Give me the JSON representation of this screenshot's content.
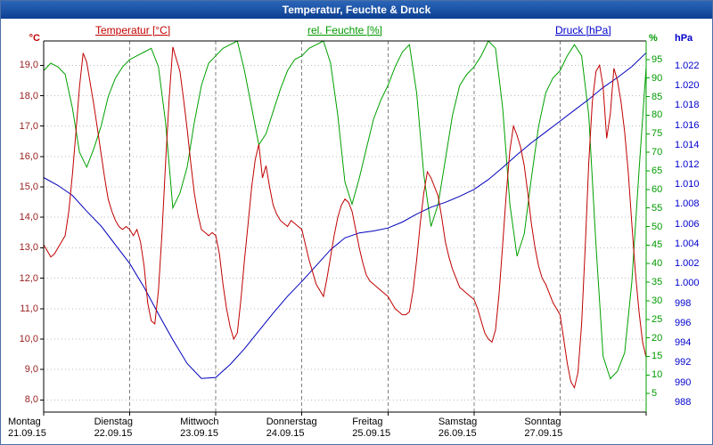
{
  "window": {
    "title": "Temperatur, Feuchte & Druck"
  },
  "colors": {
    "titlebar_start": "#2b66b8",
    "titlebar_end": "#0d3f92",
    "titlebar_text": "#ffffff",
    "plot_background": "#ffffff",
    "axis_line": "#000000",
    "grid_vertical": "#7f7f7f",
    "grid_horizontal": "#bbbbbb",
    "temperature": "#c00000",
    "temperature_labels": "#992222",
    "humidity": "#00a000",
    "humidity_labels": "#009900",
    "pressure": "#0000bb",
    "pressure_labels": "#0000cc"
  },
  "chart_data": {
    "type": "line",
    "title": "Temperatur, Feuchte & Druck",
    "grid": {
      "vertical_dashed_at_day_boundaries": true,
      "horizontal_dotted_at_temperature_ticks": true
    },
    "x_axis": {
      "unit": "hours_from_monday_00",
      "total_hours": 168,
      "days": [
        {
          "name": "Montag",
          "date": "21.09.15",
          "hour": 0
        },
        {
          "name": "Dienstag",
          "date": "22.09.15",
          "hour": 24
        },
        {
          "name": "Mittwoch",
          "date": "23.09.15",
          "hour": 48
        },
        {
          "name": "Donnerstag",
          "date": "24.09.15",
          "hour": 72
        },
        {
          "name": "Freitag",
          "date": "25.09.15",
          "hour": 96
        },
        {
          "name": "Samstag",
          "date": "26.09.15",
          "hour": 120
        },
        {
          "name": "Sonntag",
          "date": "27.09.15",
          "hour": 144
        }
      ]
    },
    "y_axes": {
      "temperature": {
        "title": "Temperatur [°C]",
        "unit": "°C",
        "side": "left",
        "min": 7.6,
        "max": 19.8,
        "ticks": [
          {
            "value": 19,
            "label": "19,0"
          },
          {
            "value": 18,
            "label": "18,0"
          },
          {
            "value": 17,
            "label": "17,0"
          },
          {
            "value": 16,
            "label": "16,0"
          },
          {
            "value": 15,
            "label": "15,0"
          },
          {
            "value": 14,
            "label": "14,0"
          },
          {
            "value": 13,
            "label": "13,0"
          },
          {
            "value": 12,
            "label": "12,0"
          },
          {
            "value": 11,
            "label": "11,0"
          },
          {
            "value": 10,
            "label": "10,0"
          },
          {
            "value": 9,
            "label": "9,0"
          },
          {
            "value": 8,
            "label": "8,0"
          }
        ]
      },
      "humidity": {
        "title": "rel. Feuchte [%]",
        "unit": "%",
        "side": "right-inner",
        "min": 0,
        "max": 100,
        "ticks": [
          {
            "value": 95,
            "label": "95"
          },
          {
            "value": 90,
            "label": "90"
          },
          {
            "value": 85,
            "label": "85"
          },
          {
            "value": 80,
            "label": "80"
          },
          {
            "value": 75,
            "label": "75"
          },
          {
            "value": 70,
            "label": "70"
          },
          {
            "value": 65,
            "label": "65"
          },
          {
            "value": 60,
            "label": "60"
          },
          {
            "value": 55,
            "label": "55"
          },
          {
            "value": 50,
            "label": "50"
          },
          {
            "value": 45,
            "label": "45"
          },
          {
            "value": 40,
            "label": "40"
          },
          {
            "value": 35,
            "label": "35"
          },
          {
            "value": 30,
            "label": "30"
          },
          {
            "value": 25,
            "label": "25"
          },
          {
            "value": 20,
            "label": "20"
          },
          {
            "value": 15,
            "label": "15"
          },
          {
            "value": 10,
            "label": "10"
          },
          {
            "value": 5,
            "label": "5"
          }
        ]
      },
      "pressure": {
        "title": "Druck [hPa]",
        "unit": "hPa",
        "side": "right-outer",
        "min": 987,
        "max": 1024.5,
        "ticks": [
          {
            "value": 1022,
            "label": "1.022"
          },
          {
            "value": 1020,
            "label": "1.020"
          },
          {
            "value": 1018,
            "label": "1.018"
          },
          {
            "value": 1016,
            "label": "1.016"
          },
          {
            "value": 1014,
            "label": "1.014"
          },
          {
            "value": 1012,
            "label": "1.012"
          },
          {
            "value": 1010,
            "label": "1.010"
          },
          {
            "value": 1008,
            "label": "1.008"
          },
          {
            "value": 1006,
            "label": "1.006"
          },
          {
            "value": 1004,
            "label": "1.004"
          },
          {
            "value": 1002,
            "label": "1.002"
          },
          {
            "value": 1000,
            "label": "1.000"
          },
          {
            "value": 998,
            "label": "998"
          },
          {
            "value": 996,
            "label": "996"
          },
          {
            "value": 994,
            "label": "994"
          },
          {
            "value": 992,
            "label": "992"
          },
          {
            "value": 990,
            "label": "990"
          },
          {
            "value": 988,
            "label": "988"
          }
        ]
      }
    },
    "series": [
      {
        "name": "Temperatur [°C]",
        "axis": "temperature",
        "color": "#c00000",
        "x_start": 0,
        "x_step": 1,
        "values": [
          13.1,
          12.9,
          12.7,
          12.8,
          13.0,
          13.2,
          13.4,
          14.2,
          15.4,
          16.8,
          18.3,
          19.4,
          19.1,
          18.4,
          17.7,
          16.9,
          16.1,
          15.3,
          14.6,
          14.2,
          13.9,
          13.7,
          13.6,
          13.7,
          13.6,
          13.4,
          13.6,
          13.2,
          12.4,
          11.2,
          10.6,
          10.5,
          11.6,
          13.5,
          15.8,
          17.9,
          19.6,
          19.2,
          18.8,
          17.9,
          16.9,
          15.8,
          14.8,
          14.1,
          13.6,
          13.5,
          13.4,
          13.5,
          13.4,
          12.8,
          11.8,
          11.0,
          10.4,
          10.0,
          10.2,
          11.3,
          12.6,
          13.8,
          15.0,
          15.9,
          16.4,
          15.3,
          15.7,
          15.0,
          14.4,
          14.1,
          13.9,
          13.8,
          13.7,
          13.9,
          13.8,
          13.7,
          13.6,
          13.1,
          12.6,
          12.2,
          11.8,
          11.6,
          11.4,
          12.0,
          12.7,
          13.4,
          14.0,
          14.4,
          14.6,
          14.5,
          14.2,
          13.6,
          13.0,
          12.5,
          12.1,
          11.9,
          11.8,
          11.7,
          11.6,
          11.5,
          11.4,
          11.2,
          11.0,
          10.9,
          10.8,
          10.8,
          10.9,
          11.6,
          12.6,
          13.8,
          14.8,
          15.5,
          15.3,
          15.0,
          14.7,
          14.0,
          13.2,
          12.7,
          12.3,
          12.0,
          11.7,
          11.6,
          11.5,
          11.4,
          11.3,
          11.0,
          10.6,
          10.2,
          10.0,
          9.9,
          10.3,
          11.5,
          13.1,
          14.8,
          16.2,
          17.0,
          16.7,
          16.3,
          15.7,
          14.8,
          13.8,
          13.0,
          12.4,
          12.0,
          11.8,
          11.5,
          11.2,
          11.0,
          10.8,
          10.0,
          9.2,
          8.6,
          8.4,
          8.9,
          10.5,
          13.0,
          15.8,
          17.8,
          18.8,
          19.0,
          18.3,
          16.6,
          17.4,
          18.9,
          18.5,
          17.8,
          16.8,
          15.5,
          13.8,
          12.2,
          10.9,
          9.9,
          9.4
        ]
      },
      {
        "name": "rel. Feuchte [%]",
        "axis": "humidity",
        "color": "#00a000",
        "x_start": 0,
        "x_step": 2,
        "values": [
          92,
          94,
          93,
          91,
          82,
          70,
          66,
          71,
          77,
          85,
          90,
          93,
          95,
          96,
          97,
          98,
          93,
          78,
          55,
          59,
          66,
          78,
          88,
          94,
          96,
          98,
          99,
          100,
          92,
          82,
          72,
          75,
          81,
          87,
          92,
          95,
          96,
          98,
          99,
          100,
          94,
          80,
          62,
          56,
          63,
          71,
          79,
          84,
          88,
          93,
          97,
          99,
          86,
          64,
          50,
          56,
          68,
          80,
          88,
          91,
          93,
          96,
          100,
          98,
          82,
          56,
          42,
          48,
          63,
          77,
          86,
          90,
          92,
          96,
          99,
          96,
          80,
          45,
          15,
          9,
          11,
          16,
          35,
          65,
          93
        ]
      },
      {
        "name": "Druck [hPa]",
        "axis": "pressure",
        "color": "#0000bb",
        "x_start": 0,
        "x_step": 4,
        "values": [
          1010.7,
          1009.9,
          1008.9,
          1007.3,
          1005.8,
          1003.9,
          1002.0,
          999.6,
          996.9,
          994.3,
          991.9,
          990.4,
          990.5,
          991.8,
          993.4,
          995.2,
          997.0,
          998.7,
          1000.2,
          1001.8,
          1003.4,
          1004.6,
          1005.1,
          1005.3,
          1005.6,
          1006.2,
          1007.0,
          1007.7,
          1008.2,
          1008.8,
          1009.5,
          1010.5,
          1011.7,
          1013.0,
          1014.2,
          1015.3,
          1016.4,
          1017.5,
          1018.6,
          1019.8,
          1020.8,
          1021.9,
          1023.3
        ]
      }
    ]
  }
}
